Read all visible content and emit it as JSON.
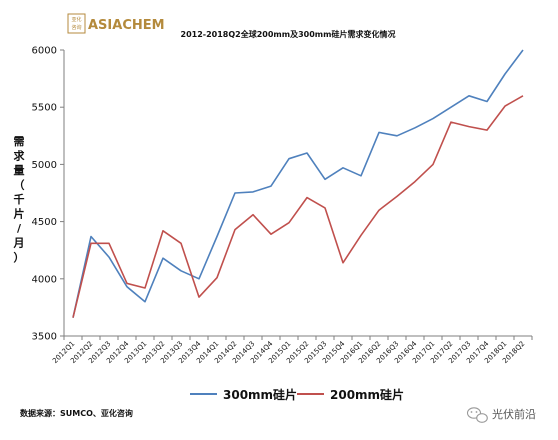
{
  "logo": {
    "seal_text": "亚化咨询",
    "brand": "ASIACHEM"
  },
  "chart_data": {
    "type": "line",
    "title": "2012-2018Q2全球200mm及300mm硅片需求变化情况",
    "ylabel": "需求量（千片/月）",
    "xlabel": "",
    "ylim": [
      3500,
      6000
    ],
    "yticks": [
      3500,
      4000,
      4500,
      5000,
      5500,
      6000
    ],
    "grid": false,
    "legend_position": "bottom-center",
    "categories": [
      "2012Q1",
      "2012Q2",
      "2012Q3",
      "2012Q4",
      "2013Q1",
      "2013Q2",
      "2013Q3",
      "2013Q4",
      "2014Q1",
      "2014Q2",
      "2014Q3",
      "2014Q4",
      "2015Q1",
      "2015Q2",
      "2015Q3",
      "2015Q4",
      "2016Q1",
      "2016Q2",
      "2016Q3",
      "2016Q4",
      "2017Q1",
      "2017Q2",
      "2017Q3",
      "2017Q4",
      "2018Q1",
      "2018Q2"
    ],
    "series": [
      {
        "name": "300mm硅片",
        "color": "#4f81bd",
        "values": [
          3660,
          4370,
          4190,
          3930,
          3800,
          4180,
          4070,
          4000,
          4370,
          4750,
          4760,
          4810,
          5050,
          5100,
          4870,
          4970,
          4900,
          5280,
          5250,
          5320,
          5400,
          5500,
          5600,
          5550,
          5790,
          6000
        ]
      },
      {
        "name": "200mm硅片",
        "color": "#c0504d",
        "values": [
          3660,
          4310,
          4310,
          3960,
          3920,
          4420,
          4310,
          3840,
          4010,
          4430,
          4560,
          4390,
          4490,
          4710,
          4620,
          4140,
          4380,
          4600,
          4720,
          4850,
          5000,
          5370,
          5330,
          5300,
          5510,
          5600
        ]
      }
    ]
  },
  "source_note": "数据来源：SUMCO、亚化咨询",
  "watermark": "光伏前沿"
}
